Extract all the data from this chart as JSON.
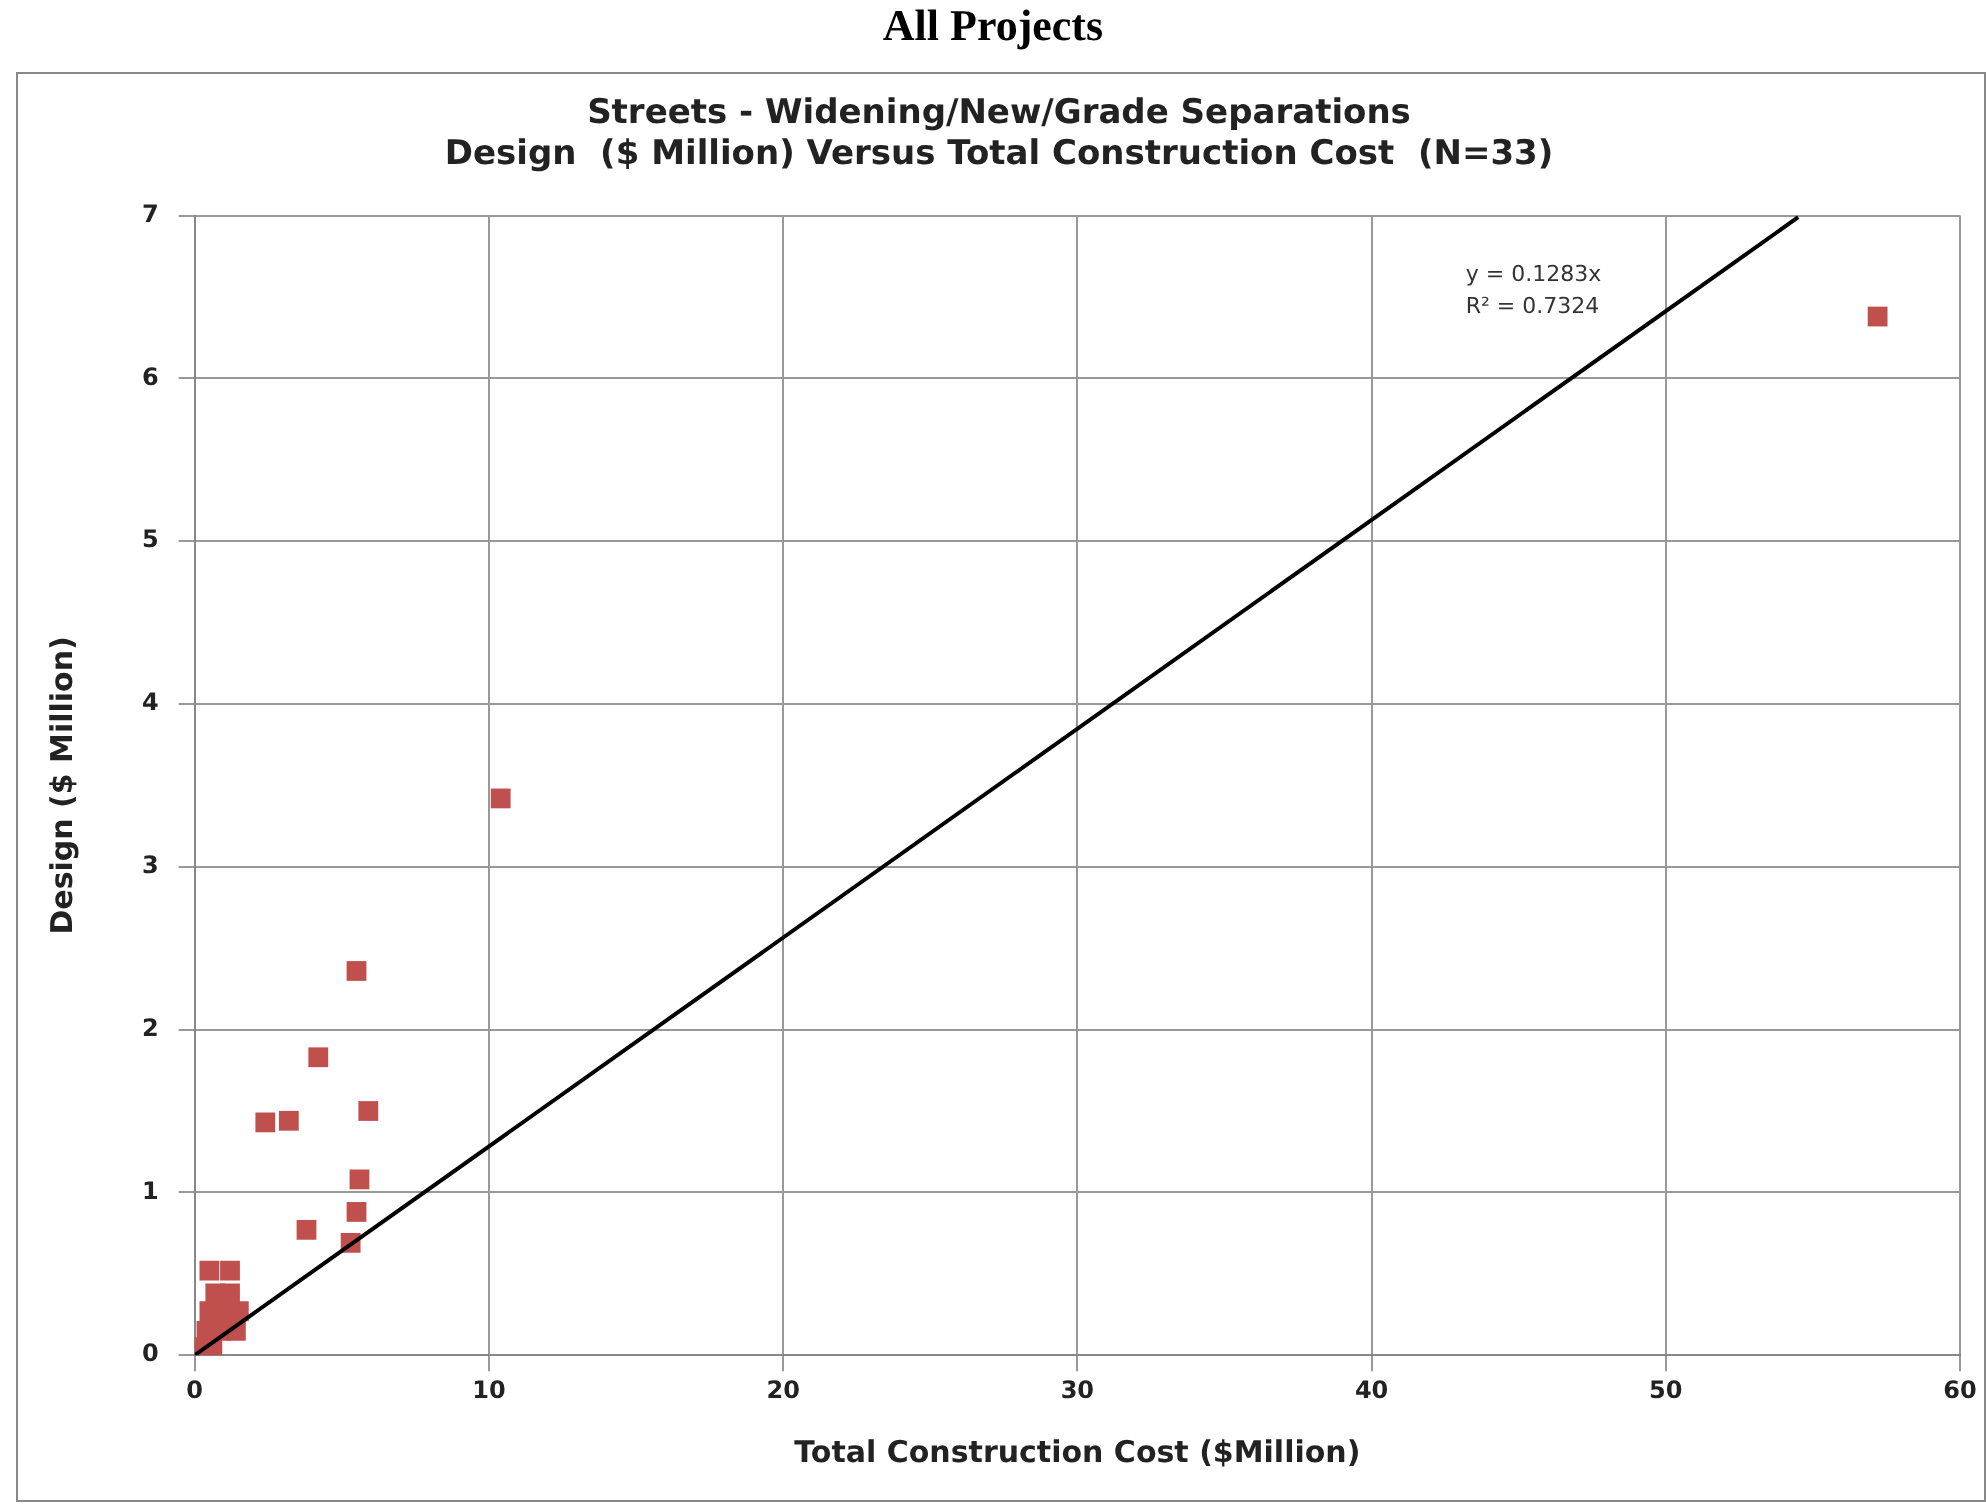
{
  "chart_data": {
    "type": "scatter",
    "title": "All Projects",
    "subtitle": "Streets - Widening/New/Grade Separations\nDesign  ($ Million) Versus Total Construction Cost  (N=33)",
    "xlabel": "Total Construction Cost ($Million)",
    "ylabel": "Design ($ Million)",
    "xlim": [
      0,
      60
    ],
    "xticks": [
      0,
      10,
      20,
      30,
      40,
      50,
      60
    ],
    "ylim": [
      0,
      7
    ],
    "yticks": [
      0,
      1,
      2,
      3,
      4,
      5,
      6,
      7
    ],
    "grid": true,
    "legend": false,
    "marker": "square",
    "annotations": [
      "y = 0.1283x",
      "R² = 0.7324"
    ],
    "series": [
      {
        "type": "line",
        "color": "#000000",
        "marker": "none",
        "x": [
          0,
          54.5
        ],
        "values": [
          0,
          6.99
        ]
      },
      {
        "color": "#c0504d",
        "x": [
          57.2,
          10.4,
          5.5,
          4.2,
          5.9,
          2.4,
          3.2,
          3.8,
          5.6,
          5.5,
          5.3,
          0.1,
          0.6,
          0.4,
          0.9,
          1.4,
          0.5,
          1.0,
          1.5,
          0.7,
          1.2,
          0.5,
          1.2
        ],
        "values": [
          6.38,
          3.42,
          2.36,
          1.83,
          1.5,
          1.43,
          1.44,
          0.77,
          1.08,
          0.88,
          0.69,
          0.05,
          0.05,
          0.15,
          0.15,
          0.15,
          0.27,
          0.27,
          0.27,
          0.38,
          0.38,
          0.52,
          0.52
        ]
      }
    ]
  }
}
